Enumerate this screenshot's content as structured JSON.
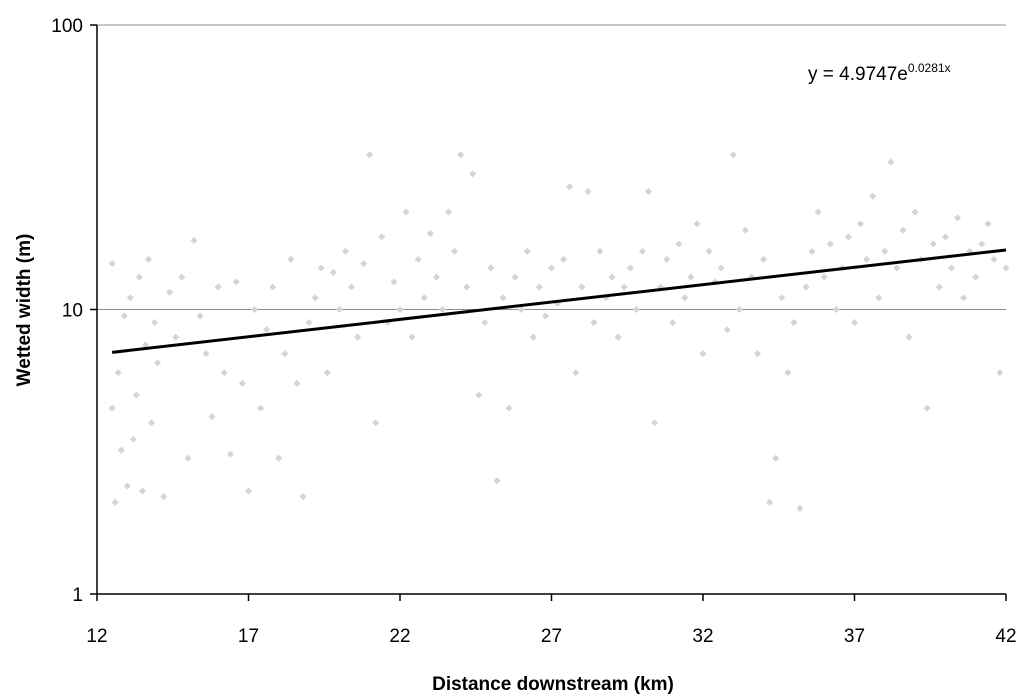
{
  "chart_data": {
    "type": "scatter",
    "title": "",
    "xlabel": "Distance downstream (km)",
    "ylabel": "Wetted width (m)",
    "xlim": [
      12,
      42
    ],
    "ylim": [
      1,
      100
    ],
    "yscale": "log",
    "x_ticks": [
      12,
      17,
      22,
      27,
      32,
      37,
      42
    ],
    "x_tick_labels": [
      "12",
      "17",
      "22",
      "27",
      "32",
      "37",
      "42"
    ],
    "y_ticks": [
      1,
      10,
      100
    ],
    "y_tick_labels": [
      "1",
      "10",
      "100"
    ],
    "gridlines": "horizontal major",
    "legend": "none",
    "colors": {
      "points": "#d4d4d4",
      "trendline": "#000000",
      "gridline": "#8c8c8c",
      "axis": "#000000"
    },
    "trendline": {
      "type": "exponential",
      "a": 4.9747,
      "b": 0.0281,
      "x_range": [
        12.5,
        42
      ],
      "equation_base": "y = 4.9747e",
      "equation_exponent": "0.0281x",
      "equation_placement": "top-right"
    },
    "series": [
      {
        "marker": "diamond",
        "x": [
          12.5,
          12.5,
          12.6,
          12.7,
          12.8,
          12.9,
          13.0,
          13.1,
          13.2,
          13.3,
          13.4,
          13.5,
          13.6,
          13.7,
          13.8,
          13.9,
          14.0,
          14.2,
          14.4,
          14.6,
          14.8,
          15.0,
          15.2,
          15.4,
          15.6,
          15.8,
          16.0,
          16.2,
          16.4,
          16.6,
          16.8,
          17.0,
          17.2,
          17.4,
          17.6,
          17.8,
          18.0,
          18.2,
          18.4,
          18.6,
          18.8,
          19.0,
          19.2,
          19.4,
          19.6,
          19.8,
          20.0,
          20.2,
          20.4,
          20.6,
          20.8,
          21.0,
          21.2,
          21.4,
          21.6,
          21.8,
          22.0,
          22.2,
          22.4,
          22.6,
          22.8,
          23.0,
          23.2,
          23.4,
          23.6,
          23.8,
          24.0,
          24.2,
          24.4,
          24.6,
          24.8,
          25.0,
          25.2,
          25.4,
          25.6,
          25.8,
          26.0,
          26.2,
          26.4,
          26.6,
          26.8,
          27.0,
          27.2,
          27.4,
          27.6,
          27.8,
          28.0,
          28.2,
          28.4,
          28.6,
          28.8,
          29.0,
          29.2,
          29.4,
          29.6,
          29.8,
          30.0,
          30.2,
          30.4,
          30.6,
          30.8,
          31.0,
          31.2,
          31.4,
          31.6,
          31.8,
          32.0,
          32.2,
          32.4,
          32.6,
          32.8,
          33.0,
          33.2,
          33.4,
          33.6,
          33.8,
          34.0,
          34.2,
          34.4,
          34.6,
          34.8,
          35.0,
          35.2,
          35.4,
          35.6,
          35.8,
          36.0,
          36.2,
          36.4,
          36.6,
          36.8,
          37.0,
          37.2,
          37.4,
          37.6,
          37.8,
          38.0,
          38.2,
          38.4,
          38.6,
          38.8,
          39.0,
          39.2,
          39.4,
          39.6,
          39.8,
          40.0,
          40.2,
          40.4,
          40.6,
          40.8,
          41.0,
          41.2,
          41.4,
          41.6,
          41.8,
          42.0
        ],
        "y": [
          4.5,
          14.5,
          2.1,
          6.0,
          3.2,
          9.5,
          2.4,
          11.0,
          3.5,
          5.0,
          13.0,
          2.3,
          7.5,
          15.0,
          4.0,
          9.0,
          6.5,
          2.2,
          11.5,
          8.0,
          13.0,
          3.0,
          17.5,
          9.5,
          7.0,
          4.2,
          12.0,
          6.0,
          3.1,
          12.5,
          5.5,
          2.3,
          10.0,
          4.5,
          8.5,
          12.0,
          3.0,
          7.0,
          15.0,
          5.5,
          2.2,
          9.0,
          11.0,
          14.0,
          6.0,
          13.5,
          10.0,
          16.0,
          12.0,
          8.0,
          14.5,
          35.0,
          4.0,
          18.0,
          9.0,
          12.5,
          10.0,
          22.0,
          8.0,
          15.0,
          11.0,
          18.5,
          13.0,
          10.0,
          22.0,
          16.0,
          35.0,
          12.0,
          30.0,
          5.0,
          9.0,
          14.0,
          2.5,
          11.0,
          4.5,
          13.0,
          10.0,
          16.0,
          8.0,
          12.0,
          9.5,
          14.0,
          10.5,
          15.0,
          27.0,
          6.0,
          12.0,
          26.0,
          9.0,
          16.0,
          11.0,
          13.0,
          8.0,
          12.0,
          14.0,
          10.0,
          16.0,
          26.0,
          4.0,
          12.0,
          15.0,
          9.0,
          17.0,
          11.0,
          13.0,
          20.0,
          7.0,
          16.0,
          12.5,
          14.0,
          8.5,
          35.0,
          10.0,
          19.0,
          13.0,
          7.0,
          15.0,
          2.1,
          3.0,
          11.0,
          6.0,
          9.0,
          2.0,
          12.0,
          16.0,
          22.0,
          13.0,
          17.0,
          10.0,
          14.0,
          18.0,
          9.0,
          20.0,
          15.0,
          25.0,
          11.0,
          16.0,
          33.0,
          14.0,
          19.0,
          8.0,
          22.0,
          15.0,
          4.5,
          17.0,
          12.0,
          18.0,
          14.0,
          21.0,
          11.0,
          16.0,
          13.0,
          17.0,
          20.0,
          15.0,
          6.0,
          14.0
        ]
      }
    ]
  }
}
